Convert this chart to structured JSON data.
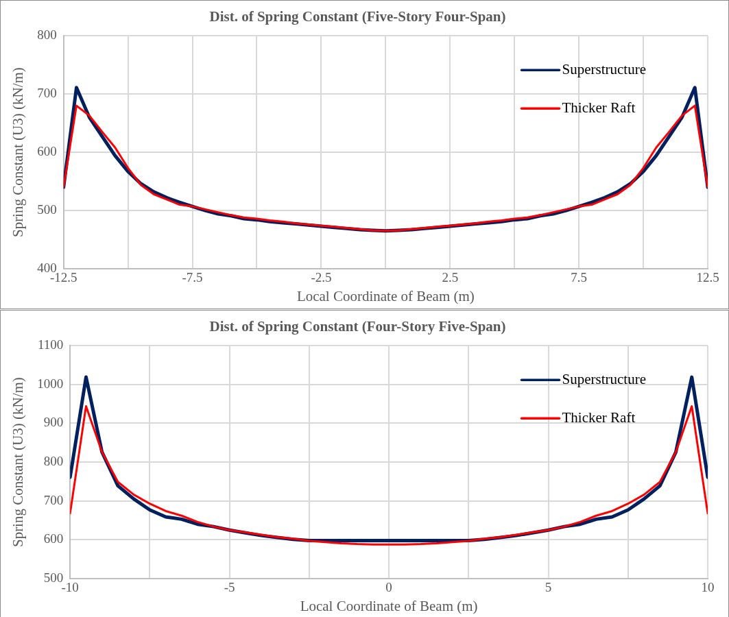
{
  "chart_data": [
    {
      "type": "line",
      "title": "Dist. of Spring Constant (Five-Story Four-Span)",
      "xlabel": "Local Coordinate of Beam (m)",
      "ylabel": "Spring Constant (U3) (kN/m)",
      "x": [
        -12.5,
        -12,
        -11.5,
        -11,
        -10.5,
        -10,
        -9.5,
        -9,
        -8.5,
        -8,
        -7.5,
        -7,
        -6.5,
        -6,
        -5.5,
        -5,
        -4.5,
        -4,
        -3.5,
        -3,
        -2.5,
        -2,
        -1.5,
        -1,
        -0.5,
        0,
        0.5,
        1,
        1.5,
        2,
        2.5,
        3,
        3.5,
        4,
        4.5,
        5,
        5.5,
        6,
        6.5,
        7,
        7.5,
        8,
        8.5,
        9,
        9.5,
        10,
        10.5,
        11,
        11.5,
        12,
        12.5
      ],
      "series": [
        {
          "name": "Superstructure",
          "color": "#002060",
          "values": [
            540,
            711,
            660,
            627,
            594,
            567,
            546,
            532,
            522,
            514,
            507,
            500,
            494,
            491,
            486,
            484,
            481,
            479,
            477,
            475,
            473,
            471,
            469,
            467,
            466,
            465,
            466,
            467,
            469,
            471,
            473,
            475,
            477,
            479,
            481,
            484,
            486,
            491,
            494,
            500,
            507,
            514,
            522,
            532,
            546,
            567,
            594,
            627,
            660,
            711,
            540
          ]
        },
        {
          "name": "Thicker Raft",
          "color": "#ff0000",
          "values": [
            540,
            680,
            663,
            635,
            608,
            573,
            544,
            528,
            519,
            510,
            507,
            502,
            497,
            492,
            488,
            486,
            483,
            481,
            478,
            476,
            474,
            472,
            470,
            468,
            466,
            465,
            466,
            468,
            470,
            472,
            474,
            476,
            478,
            481,
            483,
            486,
            488,
            492,
            497,
            502,
            507,
            510,
            519,
            528,
            544,
            573,
            608,
            635,
            663,
            680,
            540
          ]
        }
      ],
      "xlim": [
        -12.5,
        12.5
      ],
      "xticks": [
        -12.5,
        {
          "value": -10,
          "label": null
        },
        -7.5,
        {
          "value": -5,
          "label": null
        },
        -2.5,
        {
          "value": 0,
          "label": null
        },
        2.5,
        {
          "value": 5,
          "label": null
        },
        7.5,
        {
          "value": 10,
          "label": null
        },
        12.5
      ],
      "ylim": [
        400,
        800
      ],
      "yticks": [
        400,
        500,
        600,
        700,
        800
      ],
      "grid": true,
      "legend": "top right",
      "marker": "none",
      "line_style": "solid"
    },
    {
      "type": "line",
      "title": "Dist. of Spring Constant (Four-Story Five-Span)",
      "xlabel": "Local Coordinate of Beam (m)",
      "ylabel": "Spring Constant (U3) (kN/m)",
      "x": [
        -10,
        -9.5,
        -9,
        -8.5,
        -8,
        -7.5,
        -7,
        -6.5,
        -6,
        -5.5,
        -5,
        -4.5,
        -4,
        -3.5,
        -3,
        -2.5,
        -2,
        -1.5,
        -1,
        -0.5,
        0,
        0.5,
        1,
        1.5,
        2,
        2.5,
        3,
        3.5,
        4,
        4.5,
        5,
        5.5,
        6,
        6.5,
        7,
        7.5,
        8,
        8.5,
        9,
        9.5,
        10
      ],
      "series": [
        {
          "name": "Superstructure",
          "color": "#002060",
          "values": [
            761,
            1019,
            826,
            739,
            705,
            677,
            659,
            653,
            640,
            634,
            625,
            618,
            611,
            606,
            601,
            598,
            598,
            598,
            598,
            598,
            598,
            598,
            598,
            598,
            598,
            598,
            601,
            606,
            611,
            618,
            625,
            634,
            640,
            653,
            659,
            677,
            705,
            739,
            826,
            1019,
            761
          ]
        },
        {
          "name": "Thicker Raft",
          "color": "#ff0000",
          "values": [
            668,
            944,
            826,
            749,
            716,
            693,
            674,
            662,
            646,
            634,
            625,
            619,
            613,
            607,
            603,
            597,
            594,
            591,
            589,
            588,
            588,
            588,
            589,
            591,
            594,
            597,
            603,
            607,
            613,
            619,
            625,
            634,
            646,
            662,
            674,
            693,
            716,
            749,
            826,
            944,
            668
          ]
        }
      ],
      "xlim": [
        -10,
        10
      ],
      "xticks": [
        -10,
        {
          "value": -7.5,
          "label": null
        },
        -5,
        {
          "value": -2.5,
          "label": null
        },
        0,
        {
          "value": 2.5,
          "label": null
        },
        5,
        {
          "value": 7.5,
          "label": null
        },
        10
      ],
      "ylim": [
        500,
        1100
      ],
      "yticks": [
        500,
        600,
        700,
        800,
        900,
        1000,
        1100
      ],
      "grid": true,
      "legend": "top right",
      "marker": "none",
      "line_style": "solid"
    }
  ]
}
